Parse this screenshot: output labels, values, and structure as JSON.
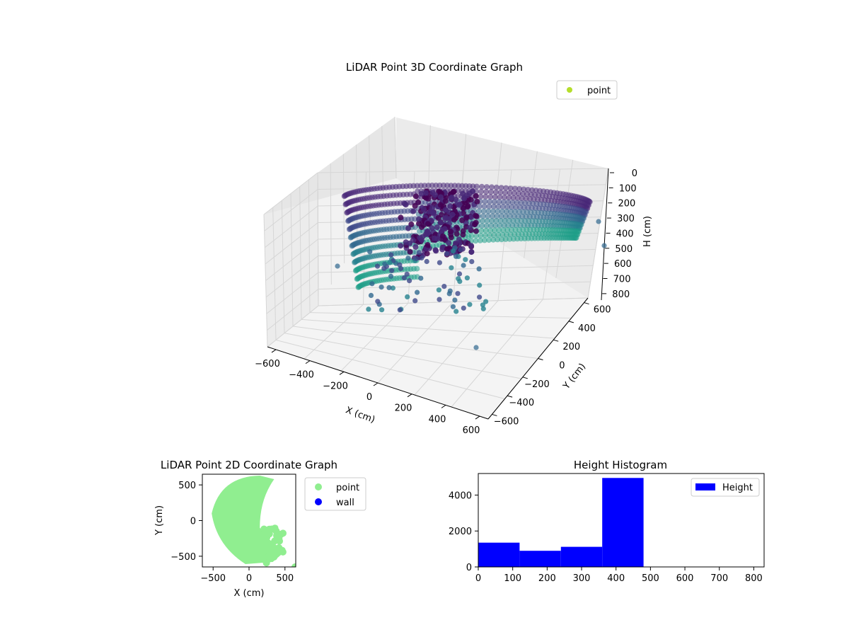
{
  "colors": {
    "viridis_dark": "#440154",
    "viridis_mid": "#31688e",
    "viridis_teal": "#35b779",
    "legend_point_3d": "#b5de2b",
    "scatter_2d": "#90ee90",
    "wall": "#0000ff",
    "hist": "#0000ff"
  },
  "chart_data": [
    {
      "type": "scatter",
      "projection": "3d",
      "title": "LiDAR Point 3D Coordinate Graph",
      "xlabel": "X (cm)",
      "ylabel": "Y (cm)",
      "zlabel": "H (cm)",
      "x_ticks": [
        "−600",
        "−400",
        "−200",
        "0",
        "200",
        "400",
        "600"
      ],
      "y_ticks": [
        "−600",
        "−400",
        "−200",
        "0",
        "200",
        "400",
        "600"
      ],
      "z_ticks": [
        "0",
        "100",
        "200",
        "300",
        "400",
        "500",
        "600",
        "700",
        "800"
      ],
      "xlim": [
        -650,
        650
      ],
      "ylim": [
        -650,
        650
      ],
      "zlim": [
        0,
        850
      ],
      "z_inverted": true,
      "grid": true,
      "legend": {
        "placement": "top-right",
        "entries": [
          "point"
        ]
      },
      "color_map": "viridis"
    },
    {
      "type": "scatter",
      "title": "LiDAR Point 2D Coordinate Graph",
      "xlabel": "X (cm)",
      "ylabel": "Y (cm)",
      "x_ticks": [
        -500,
        0,
        500
      ],
      "y_ticks": [
        -500,
        0,
        500
      ],
      "xlim": [
        -650,
        650
      ],
      "ylim": [
        -650,
        650
      ],
      "legend": {
        "placement": "outside-right",
        "entries": [
          "point",
          "wall"
        ]
      },
      "series": [
        {
          "name": "point",
          "color": "#90ee90"
        },
        {
          "name": "wall",
          "color": "#0000ff"
        }
      ]
    },
    {
      "type": "bar",
      "subtype": "histogram",
      "title": "Height Histogram",
      "xlabel": "",
      "ylabel": "",
      "bin_edges": [
        0,
        120,
        240,
        360,
        480,
        600,
        720,
        840
      ],
      "values": [
        1350,
        900,
        1120,
        4950,
        0,
        0,
        0
      ],
      "x_ticks": [
        0,
        100,
        200,
        300,
        400,
        500,
        600,
        700,
        800
      ],
      "y_ticks": [
        0,
        2000,
        4000
      ],
      "xlim": [
        0,
        830
      ],
      "ylim": [
        0,
        5200
      ],
      "legend": {
        "placement": "top-right",
        "entries": [
          "Height"
        ]
      },
      "series_name": "Height"
    }
  ]
}
